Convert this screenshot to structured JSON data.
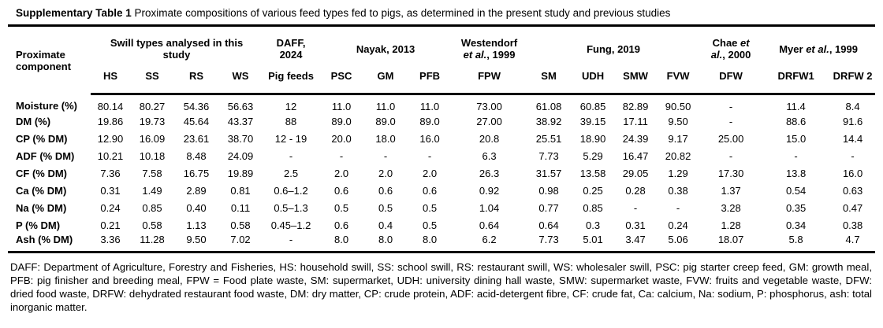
{
  "title": {
    "bold": "Supplementary Table 1",
    "rest": " Proximate compositions of various feed types fed to pigs, as determined in the present study and previous studies"
  },
  "table": {
    "row_header": "Proximate component",
    "groups": [
      {
        "label": "Swill types analysed in this study",
        "label_lines": [
          [
            {
              "t": "Swill types analysed in this"
            }
          ],
          [
            {
              "t": "study"
            }
          ]
        ],
        "cols": [
          "HS",
          "SS",
          "RS",
          "WS"
        ]
      },
      {
        "label": "DAFF, 2024",
        "label_lines": [
          [
            {
              "t": "DAFF,"
            }
          ],
          [
            {
              "t": "2024"
            }
          ]
        ],
        "cols": [
          "Pig feeds"
        ]
      },
      {
        "label": "Nayak, 2013",
        "label_lines": [
          [
            {
              "t": "Nayak, 2013"
            }
          ]
        ],
        "cols": [
          "PSC",
          "GM",
          "PFB"
        ]
      },
      {
        "label": "Westendorf et al., 1999",
        "label_lines": [
          [
            {
              "t": "Westendorf"
            }
          ],
          [
            {
              "t": "et al.",
              "i": true
            },
            {
              "t": ", 1999"
            }
          ]
        ],
        "cols": [
          "FPW"
        ]
      },
      {
        "label": "Fung, 2019",
        "label_lines": [
          [
            {
              "t": "Fung, 2019"
            }
          ]
        ],
        "cols": [
          "SM",
          "UDH",
          "SMW",
          "FVW"
        ]
      },
      {
        "label": "Chae et al., 2000",
        "label_lines": [
          [
            {
              "t": "Chae "
            },
            {
              "t": "et",
              "i": true
            }
          ],
          [
            {
              "t": "al.",
              "i": true
            },
            {
              "t": ", 2000"
            }
          ]
        ],
        "cols": [
          "DFW"
        ]
      },
      {
        "label": "Myer et al., 1999",
        "label_lines": [
          [
            {
              "t": "Myer "
            },
            {
              "t": "et al.",
              "i": true
            },
            {
              "t": ", 1999"
            }
          ]
        ],
        "cols": [
          "DRFW1",
          "DRFW 2"
        ]
      }
    ],
    "sub_columns": [
      "HS",
      "SS",
      "RS",
      "WS",
      "Pig feeds",
      "PSC",
      "GM",
      "PFB",
      "FPW",
      "SM",
      "UDH",
      "SMW",
      "FVW",
      "DFW",
      "DRFW1",
      "DRFW 2"
    ],
    "rows": [
      {
        "label": "Moisture (%)",
        "values": [
          "80.14",
          "80.27",
          "54.36",
          "56.63",
          "12",
          "11.0",
          "11.0",
          "11.0",
          "73.00",
          "61.08",
          "60.85",
          "82.89",
          "90.50",
          "-",
          "11.4",
          "8.4"
        ]
      },
      {
        "label": "DM (%)",
        "values": [
          "19.86",
          "19.73",
          "45.64",
          "43.37",
          "88",
          "89.0",
          "89.0",
          "89.0",
          "27.00",
          "38.92",
          "39.15",
          "17.11",
          "9.50",
          "-",
          "88.6",
          "91.6"
        ]
      },
      {
        "label": "CP (% DM)",
        "values": [
          "12.90",
          "16.09",
          "23.61",
          "38.70",
          "12 - 19",
          "20.0",
          "18.0",
          "16.0",
          "20.8",
          "25.51",
          "18.90",
          "24.39",
          "9.17",
          "25.00",
          "15.0",
          "14.4"
        ]
      },
      {
        "label": "ADF (% DM)",
        "values": [
          "10.21",
          "10.18",
          "8.48",
          "24.09",
          "-",
          "-",
          "-",
          "-",
          "6.3",
          "7.73",
          "5.29",
          "16.47",
          "20.82",
          "-",
          "-",
          "-"
        ]
      },
      {
        "label": "CF (% DM)",
        "values": [
          "7.36",
          "7.58",
          "16.75",
          "19.89",
          "2.5",
          "2.0",
          "2.0",
          "2.0",
          "26.3",
          "31.57",
          "13.58",
          "29.05",
          "1.29",
          "17.30",
          "13.8",
          "16.0"
        ]
      },
      {
        "label": "Ca (% DM)",
        "values": [
          "0.31",
          "1.49",
          "2.89",
          "0.81",
          "0.6–1.2",
          "0.6",
          "0.6",
          "0.6",
          "0.92",
          "0.98",
          "0.25",
          "0.28",
          "0.38",
          "1.37",
          "0.54",
          "0.63"
        ]
      },
      {
        "label": "Na (% DM)",
        "values": [
          "0.24",
          "0.85",
          "0.40",
          "0.11",
          "0.5–1.3",
          "0.5",
          "0.5",
          "0.5",
          "1.04",
          "0.77",
          "0.85",
          "-",
          "-",
          "3.28",
          "0.35",
          "0.47"
        ]
      },
      {
        "label": "P (% DM)",
        "values": [
          "0.21",
          "0.58",
          "1.13",
          "0.58",
          "0.45–1.2",
          "0.6",
          "0.4",
          "0.5",
          "0.64",
          "0.64",
          "0.3",
          "0.31",
          "0.24",
          "1.28",
          "0.34",
          "0.38"
        ]
      },
      {
        "label": "Ash (% DM)",
        "values": [
          "3.36",
          "11.28",
          "9.50",
          "7.02",
          "-",
          "8.0",
          "8.0",
          "8.0",
          "6.2",
          "7.73",
          "5.01",
          "3.47",
          "5.06",
          "18.07",
          "5.8",
          "4.7"
        ]
      }
    ]
  },
  "footnote": {
    "text": "DAFF: Department of Agriculture, Forestry and Fisheries, HS: household swill, SS: school swill, RS: restaurant swill, WS: wholesaler swill, PSC: pig starter creep feed, GM: growth meal, PFB: pig finisher and breeding meal, FPW = Food plate waste, SM: supermarket, UDH: university dining hall waste, SMW: supermarket waste, FVW: fruits and vegetable waste, DFW: dried food waste, DRFW: dehydrated restaurant food waste, DM: dry matter, CP: crude protein, ADF: acid-detergent fibre, CF: crude fat, Ca: calcium, Na: sodium, P: phosphorus, ash: total inorganic matter."
  }
}
